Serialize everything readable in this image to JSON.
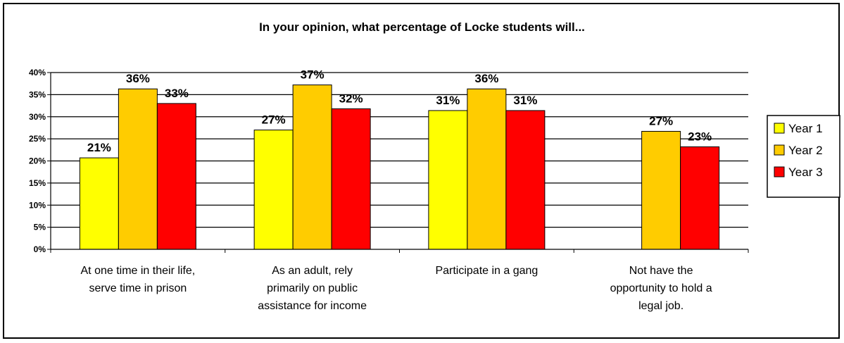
{
  "chart_data": {
    "type": "bar",
    "title": "In your opinion, what percentage of Locke students will...",
    "categories": [
      [
        "At one time in their life,",
        "serve time in prison"
      ],
      [
        "As an adult, rely",
        "primarily on public",
        "assistance for income"
      ],
      [
        "Participate in a gang"
      ],
      [
        "Not have the",
        "opportunity to hold a",
        "legal job."
      ]
    ],
    "series": [
      {
        "name": "Year 1",
        "color": "#FFFF00",
        "values": [
          20.7,
          27.0,
          31.4,
          null
        ],
        "labels": [
          "21%",
          "27%",
          "31%",
          null
        ]
      },
      {
        "name": "Year 2",
        "color": "#FFCC00",
        "values": [
          36.3,
          37.2,
          36.3,
          26.7
        ],
        "labels": [
          "36%",
          "37%",
          "36%",
          "27%"
        ]
      },
      {
        "name": "Year 3",
        "color": "#FF0000",
        "values": [
          33.0,
          31.8,
          31.4,
          23.2
        ],
        "labels": [
          "33%",
          "32%",
          "31%",
          "23%"
        ]
      }
    ],
    "ylim": [
      0,
      40
    ],
    "yticks": [
      0,
      5,
      10,
      15,
      20,
      25,
      30,
      35,
      40
    ],
    "ytick_labels": [
      "0%",
      "5%",
      "10%",
      "15%",
      "20%",
      "25%",
      "30%",
      "35%",
      "40%"
    ],
    "grid": true,
    "legend_position": "right"
  }
}
